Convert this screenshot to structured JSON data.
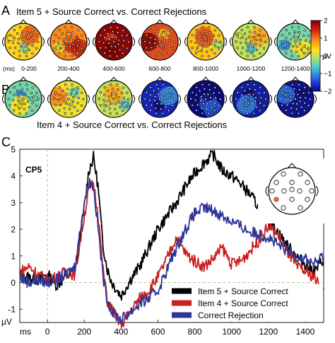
{
  "panel_a": {
    "letter": "A",
    "title": "Item 5 + Source Correct vs. Correct Rejections",
    "units_label": "(ms)",
    "windows": [
      "0-200",
      "200-400",
      "400-600",
      "600-800",
      "800-1000",
      "1000-1200",
      "1200-1400"
    ],
    "mean_levels": [
      0.4,
      0.9,
      1.9,
      1.2,
      0.5,
      0.0,
      -0.4
    ]
  },
  "panel_b": {
    "letter": "B",
    "mean_levels": [
      -0.4,
      0.2,
      0.0,
      -1.7,
      -2.0,
      -1.8,
      -1.9
    ]
  },
  "panel_c_title": "Item 4 + Source Correct vs. Correct Rejections",
  "colorbar": {
    "unit": "µV",
    "ticks": [
      "2",
      "1",
      "0",
      "−1",
      "−2"
    ],
    "min": -2,
    "max": 2
  },
  "colors": {
    "item5": "#000000",
    "item4": "#cc1f1f",
    "cr": "#2f3596",
    "electrode_highlight": "#e06a4a"
  },
  "chart_data": {
    "type": "line",
    "panel_letter": "C",
    "channel_label": "CP5",
    "xlabel": "ms",
    "ylabel": "µV",
    "xlim": [
      -150,
      1500
    ],
    "ylim": [
      -1.5,
      5
    ],
    "xticks": [
      "0",
      "200",
      "400",
      "600",
      "800",
      "1000",
      "1200",
      "1400"
    ],
    "yticks": [
      "5",
      "4",
      "3",
      "2",
      "1",
      "0",
      "-1"
    ],
    "legend_position": "bottom-right",
    "series": [
      {
        "name": "Item 5 + Source Correct",
        "color": "#000000",
        "x": [
          -150,
          -100,
          -50,
          0,
          50,
          100,
          150,
          200,
          225,
          250,
          275,
          300,
          325,
          350,
          400,
          450,
          500,
          550,
          600,
          650,
          700,
          750,
          800,
          850,
          900,
          950,
          1000,
          1050,
          1100,
          1150,
          1200,
          1250,
          1300,
          1350,
          1400,
          1450,
          1500
        ],
        "y": [
          0.3,
          0.2,
          0.1,
          0.3,
          -0.1,
          0.2,
          0.5,
          2.8,
          4.2,
          4.7,
          3.6,
          1.5,
          0.5,
          0.0,
          -0.5,
          0.1,
          0.6,
          1.3,
          2.0,
          2.5,
          3.0,
          3.6,
          4.1,
          4.5,
          4.8,
          4.2,
          4.0,
          3.7,
          3.3,
          2.8,
          2.4,
          1.9,
          1.4,
          1.0,
          0.7,
          0.4,
          0.9
        ]
      },
      {
        "name": "Item 4 + Source Correct",
        "color": "#cc1f1f",
        "x": [
          -150,
          -100,
          -50,
          0,
          50,
          100,
          150,
          200,
          225,
          250,
          275,
          300,
          325,
          350,
          400,
          450,
          500,
          550,
          600,
          650,
          700,
          750,
          800,
          850,
          900,
          950,
          1000,
          1050,
          1100,
          1150,
          1200,
          1250,
          1300,
          1350,
          1400,
          1450,
          1500
        ],
        "y": [
          0.4,
          0.6,
          0.3,
          0.1,
          0.2,
          0.4,
          0.3,
          2.5,
          3.5,
          3.7,
          2.6,
          0.6,
          -0.7,
          -1.0,
          -1.6,
          -1.1,
          -0.6,
          -0.3,
          0.2,
          0.9,
          1.7,
          1.1,
          0.8,
          0.6,
          0.9,
          1.3,
          0.7,
          0.8,
          1.2,
          1.6,
          2.1,
          1.8,
          1.2,
          0.6,
          0.4,
          0.2,
          -0.4
        ]
      },
      {
        "name": "Correct Rejection",
        "color": "#2f3596",
        "x": [
          -150,
          -100,
          -50,
          0,
          50,
          100,
          150,
          200,
          225,
          250,
          275,
          300,
          325,
          350,
          400,
          450,
          500,
          550,
          600,
          650,
          700,
          750,
          800,
          850,
          900,
          950,
          1000,
          1050,
          1100,
          1150,
          1200,
          1250,
          1300,
          1350,
          1400,
          1450,
          1500
        ],
        "y": [
          0.2,
          0.0,
          0.1,
          0.0,
          0.1,
          0.3,
          0.6,
          3.0,
          3.8,
          3.6,
          2.1,
          0.3,
          -0.6,
          -1.1,
          -1.4,
          -1.1,
          -0.8,
          -0.6,
          -0.3,
          0.5,
          1.3,
          2.0,
          2.6,
          2.8,
          2.7,
          2.5,
          2.3,
          2.1,
          1.9,
          1.8,
          1.7,
          1.4,
          1.2,
          1.0,
          0.9,
          0.7,
          1.0
        ]
      }
    ]
  }
}
